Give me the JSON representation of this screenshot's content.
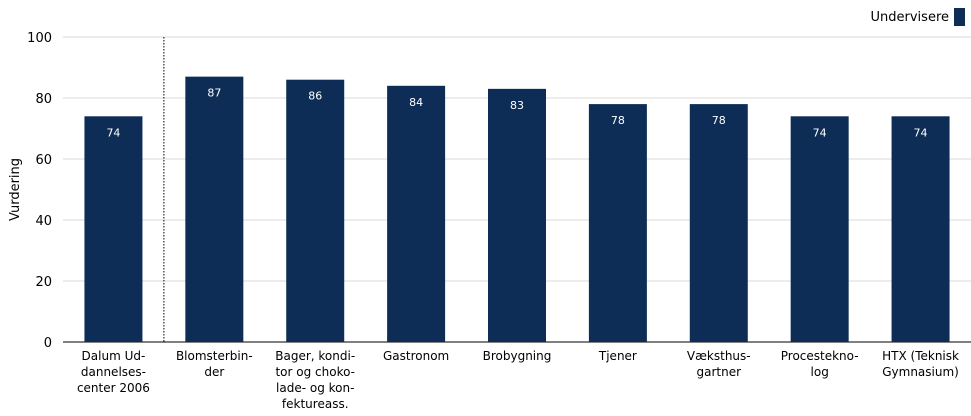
{
  "chart_data": {
    "type": "bar",
    "categories": [
      [
        "Dalum Ud-",
        "dannelses-",
        "center 2006"
      ],
      [
        "Blomsterbin-",
        "der"
      ],
      [
        "Bager, kondi-",
        "tor og choko-",
        "lade- og kon-",
        "fektureass."
      ],
      [
        "Gastronom"
      ],
      [
        "Brobygning"
      ],
      [
        "Tjener"
      ],
      [
        "Væksthus-",
        "gartner"
      ],
      [
        "Procestekno-",
        "log"
      ],
      [
        "HTX (Teknisk",
        "Gymnasium)"
      ]
    ],
    "series": [
      {
        "name": "Undervisere",
        "values": [
          74,
          87,
          86,
          84,
          83,
          78,
          78,
          74,
          74
        ]
      }
    ],
    "bar_labels": [
      "74",
      "87",
      "86",
      "84",
      "83",
      "78",
      "78",
      "74",
      "74"
    ],
    "ylabel": "Vurdering",
    "ylim": [
      0,
      100
    ],
    "yticks": [
      0,
      20,
      40,
      60,
      80,
      100
    ],
    "grid": true,
    "legend_position": "top-right",
    "divider_after_category": 0
  },
  "colors": {
    "bar": "#0d2d56",
    "grid": "#d9d9d9",
    "axis": "#000000",
    "bar_label": "#ffffff"
  }
}
